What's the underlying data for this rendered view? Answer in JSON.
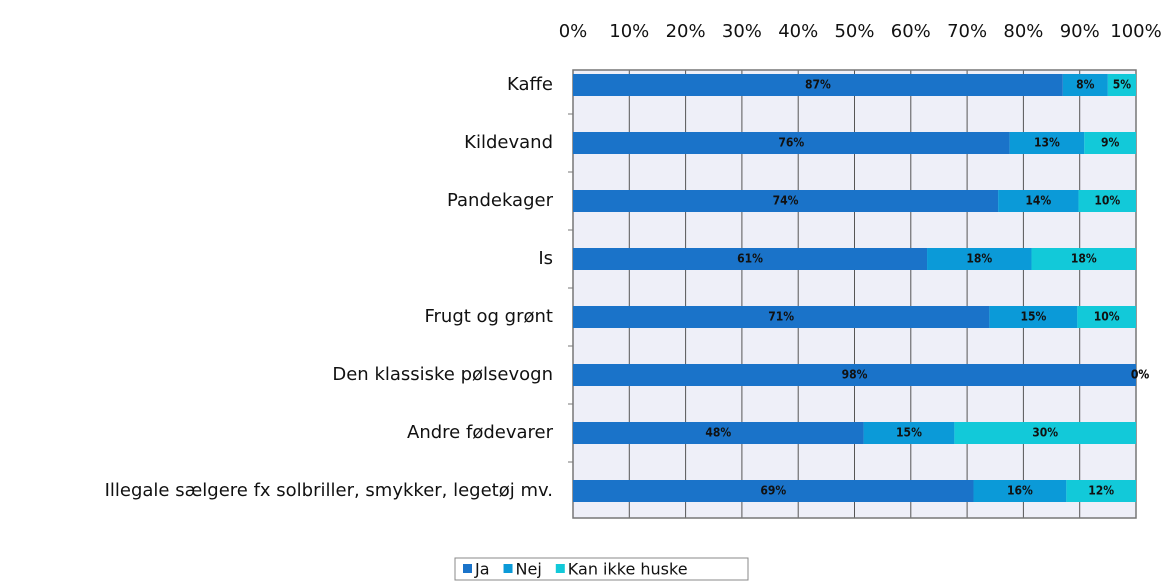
{
  "chart_data": {
    "type": "bar",
    "orientation": "horizontal",
    "stacking": "percent",
    "categories": [
      "Kaffe",
      "Kildevand",
      "Pandekager",
      "Is",
      "Frugt og grønt",
      "Den klassiske pølsevogn",
      "Andre fødevarer",
      "Illegale sælgere fx solbriller, smykker, legetøj mv."
    ],
    "series": [
      {
        "name": "Ja",
        "color": "#1a73c9",
        "values": [
          87,
          76,
          74,
          61,
          71,
          98,
          48,
          69
        ],
        "value_labels": [
          "87%",
          "76%",
          "74%",
          "61%",
          "71%",
          "98%",
          "48%",
          "69%"
        ]
      },
      {
        "name": "Nej",
        "color": "#0b9ad8",
        "values": [
          8,
          13,
          14,
          18,
          15,
          0,
          15,
          16
        ],
        "value_labels": [
          "8%",
          "13%",
          "14%",
          "18%",
          "15%",
          "0%",
          "15%",
          "16%"
        ]
      },
      {
        "name": "Kan ikke huske",
        "color": "#12c9d9",
        "values": [
          5,
          9,
          10,
          18,
          10,
          0,
          30,
          12
        ],
        "value_labels": [
          "5%",
          "9%",
          "10%",
          "18%",
          "10%",
          "0%",
          "30%",
          "12%"
        ]
      }
    ],
    "xlim": [
      0,
      100
    ],
    "xticks": [
      {
        "value": 0,
        "label": "0%"
      },
      {
        "value": 10,
        "label": "10%"
      },
      {
        "value": 20,
        "label": "20%"
      },
      {
        "value": 30,
        "label": "30%"
      },
      {
        "value": 40,
        "label": "40%"
      },
      {
        "value": 50,
        "label": "50%"
      },
      {
        "value": 60,
        "label": "60%"
      },
      {
        "value": 70,
        "label": "70%"
      },
      {
        "value": 80,
        "label": "80%"
      },
      {
        "value": 90,
        "label": "90%"
      },
      {
        "value": 100,
        "label": "100%"
      }
    ],
    "grid": true,
    "legend": "bottom"
  }
}
